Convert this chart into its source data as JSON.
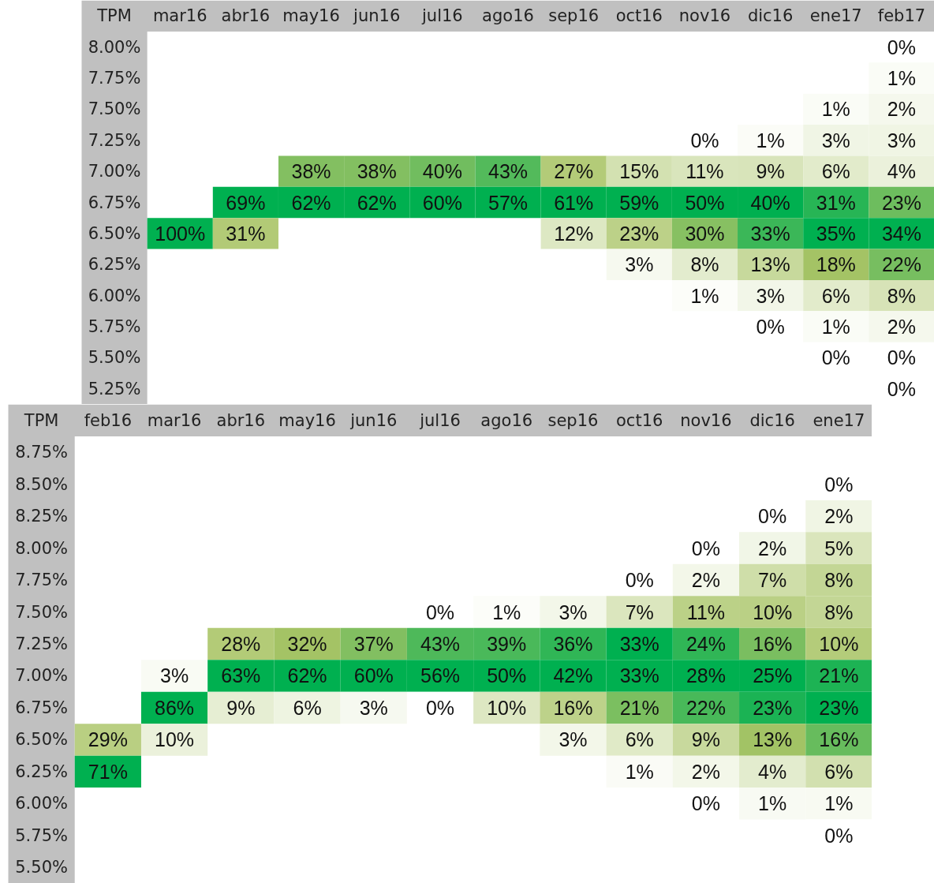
{
  "chart_data": [
    {
      "type": "heatmap",
      "ylabel": "TPM",
      "colors": [
        "#ffffff",
        "#a9c466",
        "#00b050"
      ],
      "categories": [
        "mar16",
        "abr16",
        "may16",
        "jun16",
        "jul16",
        "ago16",
        "sep16",
        "oct16",
        "nov16",
        "dic16",
        "ene17",
        "feb17"
      ],
      "y_categories": [
        "8.00%",
        "7.75%",
        "7.50%",
        "7.25%",
        "7.00%",
        "6.75%",
        "6.50%",
        "6.25%",
        "6.00%",
        "5.75%",
        "5.50%",
        "5.25%"
      ],
      "cells": [
        [
          null,
          null,
          null,
          null,
          null,
          null,
          null,
          null,
          null,
          null,
          null,
          0
        ],
        [
          null,
          null,
          null,
          null,
          null,
          null,
          null,
          null,
          null,
          null,
          null,
          1
        ],
        [
          null,
          null,
          null,
          null,
          null,
          null,
          null,
          null,
          null,
          null,
          1,
          2
        ],
        [
          null,
          null,
          null,
          null,
          null,
          null,
          null,
          null,
          0,
          1,
          3,
          3
        ],
        [
          null,
          null,
          38,
          38,
          40,
          43,
          27,
          15,
          11,
          9,
          6,
          4
        ],
        [
          null,
          69,
          62,
          62,
          60,
          57,
          61,
          59,
          50,
          40,
          31,
          23
        ],
        [
          100,
          31,
          null,
          null,
          null,
          null,
          12,
          23,
          30,
          33,
          35,
          34
        ],
        [
          null,
          null,
          null,
          null,
          null,
          null,
          null,
          3,
          8,
          13,
          18,
          22
        ],
        [
          null,
          null,
          null,
          null,
          null,
          null,
          null,
          null,
          1,
          3,
          6,
          8
        ],
        [
          null,
          null,
          null,
          null,
          null,
          null,
          null,
          null,
          null,
          0,
          1,
          2
        ],
        [
          null,
          null,
          null,
          null,
          null,
          null,
          null,
          null,
          null,
          null,
          0,
          0
        ],
        [
          null,
          null,
          null,
          null,
          null,
          null,
          null,
          null,
          null,
          null,
          null,
          0
        ]
      ],
      "cell_labels": [
        [
          null,
          null,
          null,
          null,
          null,
          null,
          null,
          null,
          null,
          null,
          null,
          "0%"
        ],
        [
          null,
          null,
          null,
          null,
          null,
          null,
          null,
          null,
          null,
          null,
          null,
          "1%"
        ],
        [
          null,
          null,
          null,
          null,
          null,
          null,
          null,
          null,
          null,
          null,
          "1%",
          "2%"
        ],
        [
          null,
          null,
          null,
          null,
          null,
          null,
          null,
          null,
          "0%",
          "1%",
          "3%",
          "3%"
        ],
        [
          null,
          null,
          "38%",
          "38%",
          "40%",
          "43%",
          "27%",
          "15%",
          "11%",
          "9%",
          "6%",
          "4%"
        ],
        [
          null,
          "69%",
          "62%",
          "62%",
          "60%",
          "57%",
          "61%",
          "59%",
          "50%",
          "40%",
          "31%",
          "23%"
        ],
        [
          "100%",
          "31%",
          null,
          null,
          null,
          null,
          "12%",
          "23%",
          "30%",
          "33%",
          "35%",
          "34%"
        ],
        [
          null,
          null,
          null,
          null,
          null,
          null,
          null,
          "3%",
          "8%",
          "13%",
          "18%",
          "22%"
        ],
        [
          null,
          null,
          null,
          null,
          null,
          null,
          null,
          null,
          "1%",
          "3%",
          "6%",
          "8%"
        ],
        [
          null,
          null,
          null,
          null,
          null,
          null,
          null,
          null,
          null,
          "0%",
          "1%",
          "2%"
        ],
        [
          null,
          null,
          null,
          null,
          null,
          null,
          null,
          null,
          null,
          null,
          "0%",
          "0%"
        ],
        [
          null,
          null,
          null,
          null,
          null,
          null,
          null,
          null,
          null,
          null,
          null,
          "0%"
        ]
      ]
    },
    {
      "type": "heatmap",
      "ylabel": "TPM",
      "colors": [
        "#ffffff",
        "#a9c466",
        "#00b050"
      ],
      "categories": [
        "feb16",
        "mar16",
        "abr16",
        "may16",
        "jun16",
        "jul16",
        "ago16",
        "sep16",
        "oct16",
        "nov16",
        "dic16",
        "ene17"
      ],
      "y_categories": [
        "8.75%",
        "8.50%",
        "8.25%",
        "8.00%",
        "7.75%",
        "7.50%",
        "7.25%",
        "7.00%",
        "6.75%",
        "6.50%",
        "6.25%",
        "6.00%",
        "5.75%",
        "5.50%"
      ],
      "cells": [
        [
          null,
          null,
          null,
          null,
          null,
          null,
          null,
          null,
          null,
          null,
          null,
          null
        ],
        [
          null,
          null,
          null,
          null,
          null,
          null,
          null,
          null,
          null,
          null,
          null,
          0
        ],
        [
          null,
          null,
          null,
          null,
          null,
          null,
          null,
          null,
          null,
          null,
          0,
          2
        ],
        [
          null,
          null,
          null,
          null,
          null,
          null,
          null,
          null,
          null,
          0,
          2,
          5
        ],
        [
          null,
          null,
          null,
          null,
          null,
          null,
          null,
          null,
          0,
          2,
          7,
          8
        ],
        [
          null,
          null,
          null,
          null,
          null,
          0,
          1,
          3,
          7,
          11,
          10,
          8
        ],
        [
          null,
          null,
          28,
          32,
          37,
          43,
          39,
          36,
          33,
          24,
          16,
          10
        ],
        [
          null,
          3,
          63,
          62,
          60,
          56,
          50,
          42,
          33,
          28,
          25,
          21
        ],
        [
          null,
          86,
          9,
          6,
          3,
          0,
          10,
          16,
          21,
          22,
          23,
          23
        ],
        [
          29,
          10,
          null,
          null,
          null,
          null,
          null,
          3,
          6,
          9,
          13,
          16
        ],
        [
          71,
          null,
          null,
          null,
          null,
          null,
          null,
          null,
          1,
          2,
          4,
          6
        ],
        [
          null,
          null,
          null,
          null,
          null,
          null,
          null,
          null,
          null,
          0,
          1,
          1
        ],
        [
          null,
          null,
          null,
          null,
          null,
          null,
          null,
          null,
          null,
          null,
          null,
          0
        ],
        [
          null,
          null,
          null,
          null,
          null,
          null,
          null,
          null,
          null,
          null,
          null,
          null
        ]
      ],
      "cell_labels": [
        [
          null,
          null,
          null,
          null,
          null,
          null,
          null,
          null,
          null,
          null,
          null,
          null
        ],
        [
          null,
          null,
          null,
          null,
          null,
          null,
          null,
          null,
          null,
          null,
          null,
          "0%"
        ],
        [
          null,
          null,
          null,
          null,
          null,
          null,
          null,
          null,
          null,
          null,
          "0%",
          "2%"
        ],
        [
          null,
          null,
          null,
          null,
          null,
          null,
          null,
          null,
          null,
          "0%",
          "2%",
          "5%"
        ],
        [
          null,
          null,
          null,
          null,
          null,
          null,
          null,
          null,
          "0%",
          "2%",
          "7%",
          "8%"
        ],
        [
          null,
          null,
          null,
          null,
          null,
          "0%",
          "1%",
          "3%",
          "7%",
          "11%",
          "10%",
          "8%"
        ],
        [
          null,
          null,
          "28%",
          "32%",
          "37%",
          "43%",
          "39%",
          "36%",
          "33%",
          "24%",
          "16%",
          "10%"
        ],
        [
          null,
          "3%",
          "63%",
          "62%",
          "60%",
          "56%",
          "50%",
          "42%",
          "33%",
          "28%",
          "25%",
          "21%"
        ],
        [
          null,
          "86%",
          "9%",
          "6%",
          "3%",
          "0%",
          "10%",
          "16%",
          "21%",
          "22%",
          "23%",
          "23%"
        ],
        [
          "29%",
          "10%",
          null,
          null,
          null,
          null,
          null,
          "3%",
          "6%",
          "9%",
          "13%",
          "16%"
        ],
        [
          "71%",
          null,
          null,
          null,
          null,
          null,
          null,
          null,
          "1%",
          "2%",
          "4%",
          "6%"
        ],
        [
          null,
          null,
          null,
          null,
          null,
          null,
          null,
          null,
          null,
          "0%",
          "1%",
          "1%"
        ],
        [
          null,
          null,
          null,
          null,
          null,
          null,
          null,
          null,
          null,
          null,
          null,
          "0%"
        ],
        [
          null,
          null,
          null,
          null,
          null,
          null,
          null,
          null,
          null,
          null,
          null,
          null
        ]
      ]
    }
  ]
}
